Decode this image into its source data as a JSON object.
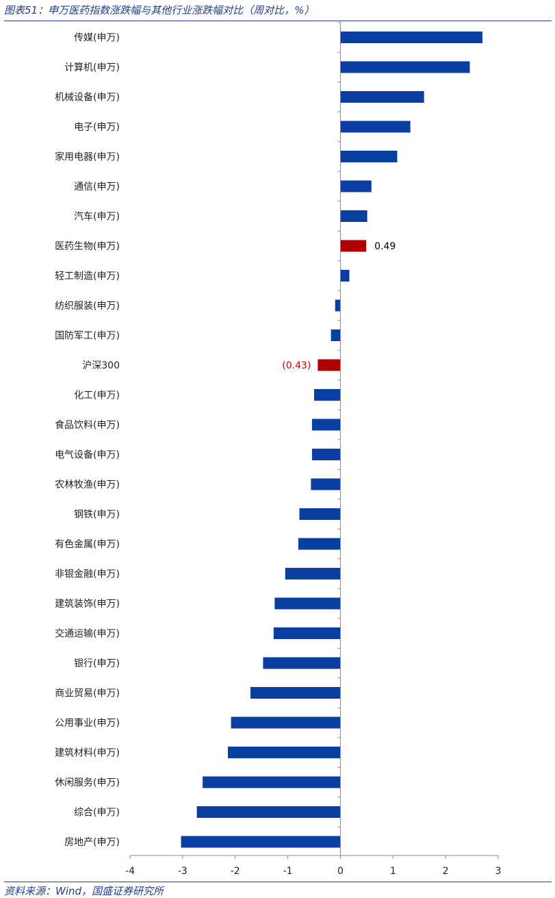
{
  "header": {
    "title": "图表51：申万医药指数涨跌幅与其他行业涨跌幅对比（周对比，%）"
  },
  "footer": {
    "source": "资料来源：Wind，国盛证券研究所"
  },
  "colors": {
    "bar": "#0a3fa2",
    "highlight": "#b00000",
    "highlight_label_pos": "#000000",
    "highlight_label_neg": "#d00000",
    "rule": "#1f3f8f"
  },
  "chart_data": {
    "type": "bar",
    "orientation": "horizontal",
    "title": "申万医药指数涨跌幅与其他行业涨跌幅对比（周对比，%）",
    "xlabel": "",
    "ylabel": "",
    "xlim": [
      -4,
      3
    ],
    "xticks": [
      "-4",
      "-3",
      "-2",
      "-1",
      "0",
      "1",
      "2",
      "3"
    ],
    "grid": false,
    "categories": [
      "传媒(申万)",
      "计算机(申万)",
      "机械设备(申万)",
      "电子(申万)",
      "家用电器(申万)",
      "通信(申万)",
      "汽车(申万)",
      "医药生物(申万)",
      "轻工制造(申万)",
      "纺织服装(申万)",
      "国防军工(申万)",
      "沪深300",
      "化工(申万)",
      "食品饮料(申万)",
      "电气设备(申万)",
      "农林牧渔(申万)",
      "钢铁(申万)",
      "有色金属(申万)",
      "非银金融(申万)",
      "建筑装饰(申万)",
      "交通运输(申万)",
      "银行(申万)",
      "商业贸易(申万)",
      "公用事业(申万)",
      "建筑材料(申万)",
      "休闲服务(申万)",
      "综合(申万)",
      "房地产(申万)"
    ],
    "values": [
      2.7,
      2.46,
      1.59,
      1.33,
      1.08,
      0.59,
      0.51,
      0.49,
      0.17,
      -0.1,
      -0.18,
      -0.43,
      -0.5,
      -0.54,
      -0.54,
      -0.56,
      -0.78,
      -0.8,
      -1.05,
      -1.25,
      -1.27,
      -1.47,
      -1.71,
      -2.08,
      -2.14,
      -2.62,
      -2.73,
      -3.03
    ],
    "highlighted": [
      "医药生物(申万)",
      "沪深300"
    ],
    "data_labels": {
      "医药生物(申万)": "0.49",
      "沪深300": "(0.43)"
    }
  }
}
